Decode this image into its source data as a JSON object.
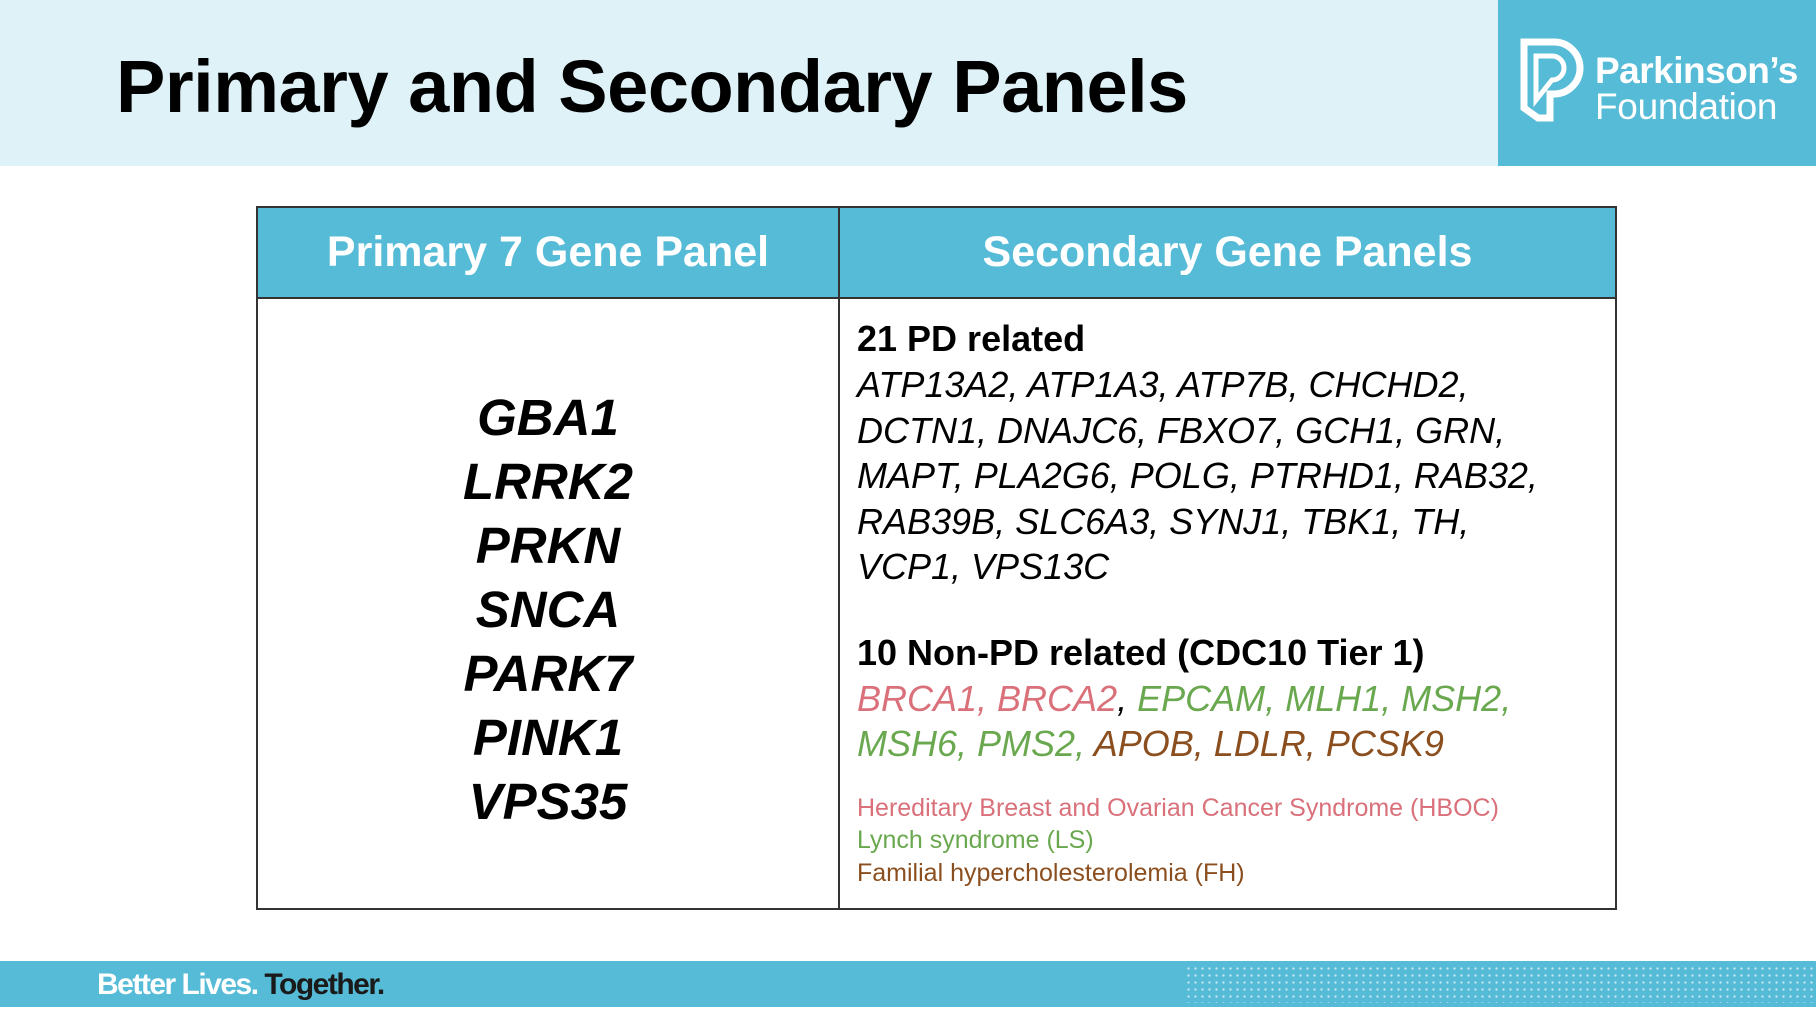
{
  "title": "Primary and Secondary Panels",
  "logo": {
    "line1": "Parkinson’s",
    "line2": "Foundation"
  },
  "table": {
    "headers": [
      "Primary 7 Gene Panel",
      "Secondary Gene Panels"
    ],
    "primary_genes": [
      "GBA1",
      "LRRK2",
      "PRKN",
      "SNCA",
      "PARK7",
      "PINK1",
      "VPS35"
    ],
    "pd_heading": "21 PD related",
    "pd_lines": [
      "ATP13A2, ATP1A3, ATP7B, CHCHD2,",
      "DCTN1, DNAJC6, FBXO7, GCH1, GRN,",
      "MAPT, PLA2G6, POLG, PTRHD1, RAB32,",
      "RAB39B, SLC6A3, SYNJ1, TBK1, TH,",
      "VCP1, VPS13C"
    ],
    "nonpd_heading": "10 Non-PD related (CDC10 Tier 1)",
    "nonpd_line1": {
      "hboc": "BRCA1, BRCA2",
      "sep": ",",
      "ls": " EPCAM, MLH1, MSH2,"
    },
    "nonpd_line2": {
      "ls": "MSH6, PMS2,",
      "fh": " APOB, LDLR, PCSK9"
    },
    "legend": {
      "hboc": "Hereditary Breast and Ovarian Cancer Syndrome (HBOC)",
      "ls": "Lynch syndrome (LS)",
      "fh": "Familial hypercholesterolemia (FH)"
    }
  },
  "colors": {
    "accent": "#56bbd6",
    "header_bg": "#dff2f8",
    "hboc": "#d9707a",
    "ls": "#6aa84f",
    "fh": "#8b4f1f"
  },
  "footer": {
    "tagline_a": "Better Lives.",
    "tagline_b": " Together."
  }
}
